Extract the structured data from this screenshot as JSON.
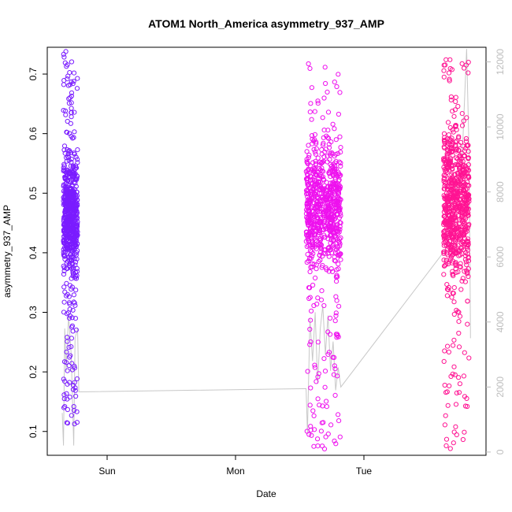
{
  "chart_data": {
    "type": "scatter",
    "title": "ATOM1 North_America asymmetry_937_AMP",
    "xlabel": "Date",
    "ylabel": "asymmetry_937_AMP",
    "x_ticks": [
      "Sun",
      "Mon",
      "Tue"
    ],
    "y_ticks": [
      "0.1",
      "0.2",
      "0.3",
      "0.4",
      "0.5",
      "0.6",
      "0.7"
    ],
    "y2_ticks": [
      "0",
      "2000",
      "4000",
      "6000",
      "8000",
      "10000",
      "12000"
    ],
    "ylim": [
      0.06,
      0.745
    ],
    "y2lim": [
      -100,
      12450
    ],
    "series": [
      {
        "color": "#7a1cff",
        "x_range_days": [
          -0.34,
          -0.23
        ],
        "dense_range": [
          0.32,
          0.6
        ],
        "y_range": [
          0.11,
          0.74
        ],
        "count": 700
      },
      {
        "color": "#ee11ee",
        "x_range_days": [
          1.55,
          1.82
        ],
        "dense_range": [
          0.34,
          0.62
        ],
        "y_range": [
          0.065,
          0.72
        ],
        "count": 800
      },
      {
        "color": "#ff1493",
        "x_range_days": [
          2.62,
          2.82
        ],
        "dense_range": [
          0.3,
          0.66
        ],
        "y_range": [
          0.07,
          0.73
        ],
        "count": 750
      }
    ],
    "count_line": {
      "color": "#c8c8c8",
      "points": [
        [
          -0.35,
          1200
        ],
        [
          -0.34,
          200
        ],
        [
          -0.33,
          3800
        ],
        [
          -0.32,
          2500
        ],
        [
          -0.3,
          4200
        ],
        [
          -0.28,
          3000
        ],
        [
          -0.26,
          200
        ],
        [
          -0.25,
          3500
        ],
        [
          -0.23,
          3800
        ],
        [
          -0.22,
          1850
        ],
        [
          1.55,
          1950
        ],
        [
          1.56,
          600
        ],
        [
          1.58,
          4100
        ],
        [
          1.6,
          2800
        ],
        [
          1.62,
          4300
        ],
        [
          1.64,
          2100
        ],
        [
          1.66,
          3800
        ],
        [
          1.68,
          4500
        ],
        [
          1.7,
          3000
        ],
        [
          1.72,
          4200
        ],
        [
          1.74,
          2500
        ],
        [
          1.76,
          3400
        ],
        [
          1.78,
          1900
        ],
        [
          1.8,
          2600
        ],
        [
          1.82,
          2000
        ],
        [
          2.63,
          6200
        ],
        [
          2.66,
          6600
        ],
        [
          2.7,
          8500
        ],
        [
          2.74,
          7800
        ],
        [
          2.77,
          9500
        ],
        [
          2.8,
          12400
        ],
        [
          2.82,
          9000
        ],
        [
          2.83,
          3500
        ]
      ]
    }
  }
}
